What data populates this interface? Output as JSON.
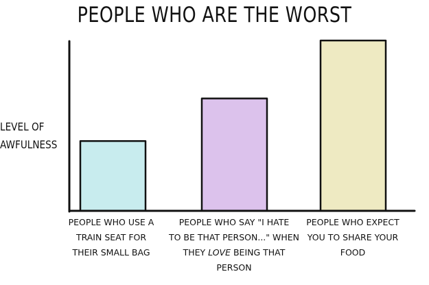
{
  "chart_data": {
    "type": "bar",
    "title": "PEOPLE WHO ARE THE WORST",
    "ylabel": "LEVEL OF\nAWFULNESS",
    "xlabel": "",
    "ylim": [
      0,
      100
    ],
    "categories": [
      "PEOPLE WHO USE A TRAIN SEAT FOR THEIR SMALL BAG",
      "PEOPLE WHO SAY \"I HATE TO BE THAT PERSON...\" WHEN THEY LOVE BEING THAT PERSON",
      "PEOPLE WHO EXPECT YOU TO SHARE YOUR FOOD"
    ],
    "values": [
      41,
      66,
      100
    ],
    "colors": [
      "#c8ecee",
      "#dcc2ec",
      "#eeeac2"
    ],
    "grid": false,
    "tick_labels_shown": false
  },
  "labels": [
    {
      "lines": [
        "PEOPLE WHO USE A",
        "TRAIN SEAT FOR",
        "THEIR SMALL BAG"
      ]
    },
    {
      "lines": [
        "PEOPLE WHO SAY \"I HATE",
        "TO BE THAT PERSON...\" WHEN",
        "THEY |LOVE| BEING THAT",
        "PERSON"
      ]
    },
    {
      "lines": [
        "PEOPLE WHO EXPECT",
        "YOU TO SHARE YOUR",
        "FOOD"
      ]
    }
  ]
}
